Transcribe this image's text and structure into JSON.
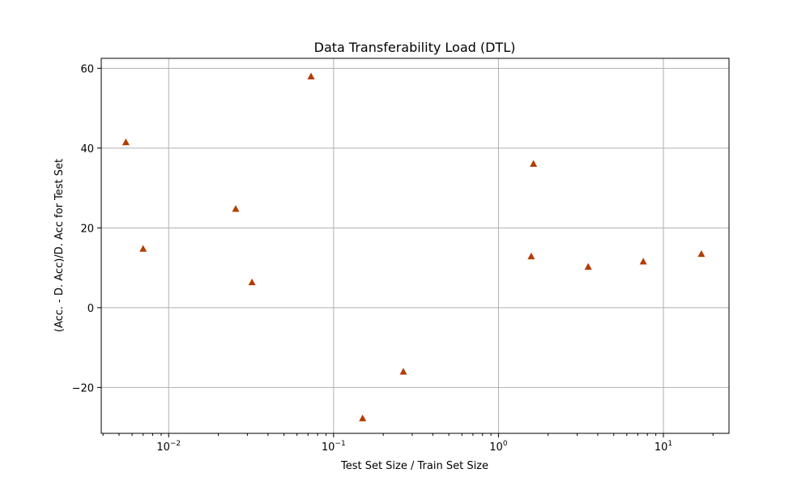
{
  "chart_data": {
    "type": "scatter",
    "title": "Data Transferability Load (DTL)",
    "xlabel": "Test Set Size / Train Set Size",
    "ylabel": "(Acc. - D. Acc)/D. Acc for Test Set",
    "x_scale": "log",
    "xlim": [
      0.0039,
      25
    ],
    "ylim": [
      -31.5,
      62.5
    ],
    "grid": true,
    "marker": "triangle",
    "marker_color": "#b33c00",
    "x_ticks": [
      {
        "value": 0.01,
        "label": "10−2"
      },
      {
        "value": 0.1,
        "label": "10−1"
      },
      {
        "value": 1,
        "label": "100"
      },
      {
        "value": 10,
        "label": "101"
      }
    ],
    "y_ticks": [
      {
        "value": -20,
        "label": "−20"
      },
      {
        "value": 0,
        "label": "0"
      },
      {
        "value": 20,
        "label": "20"
      },
      {
        "value": 40,
        "label": "40"
      },
      {
        "value": 60,
        "label": "60"
      }
    ],
    "points": [
      {
        "x": 0.0055,
        "y": 41.5
      },
      {
        "x": 0.007,
        "y": 14.8
      },
      {
        "x": 0.0255,
        "y": 24.8
      },
      {
        "x": 0.032,
        "y": 6.4
      },
      {
        "x": 0.073,
        "y": 58.0
      },
      {
        "x": 0.15,
        "y": -27.7
      },
      {
        "x": 0.265,
        "y": -16.0
      },
      {
        "x": 1.58,
        "y": 12.9
      },
      {
        "x": 1.63,
        "y": 36.1
      },
      {
        "x": 3.5,
        "y": 10.3
      },
      {
        "x": 7.55,
        "y": 11.6
      },
      {
        "x": 17.0,
        "y": 13.5
      }
    ]
  }
}
